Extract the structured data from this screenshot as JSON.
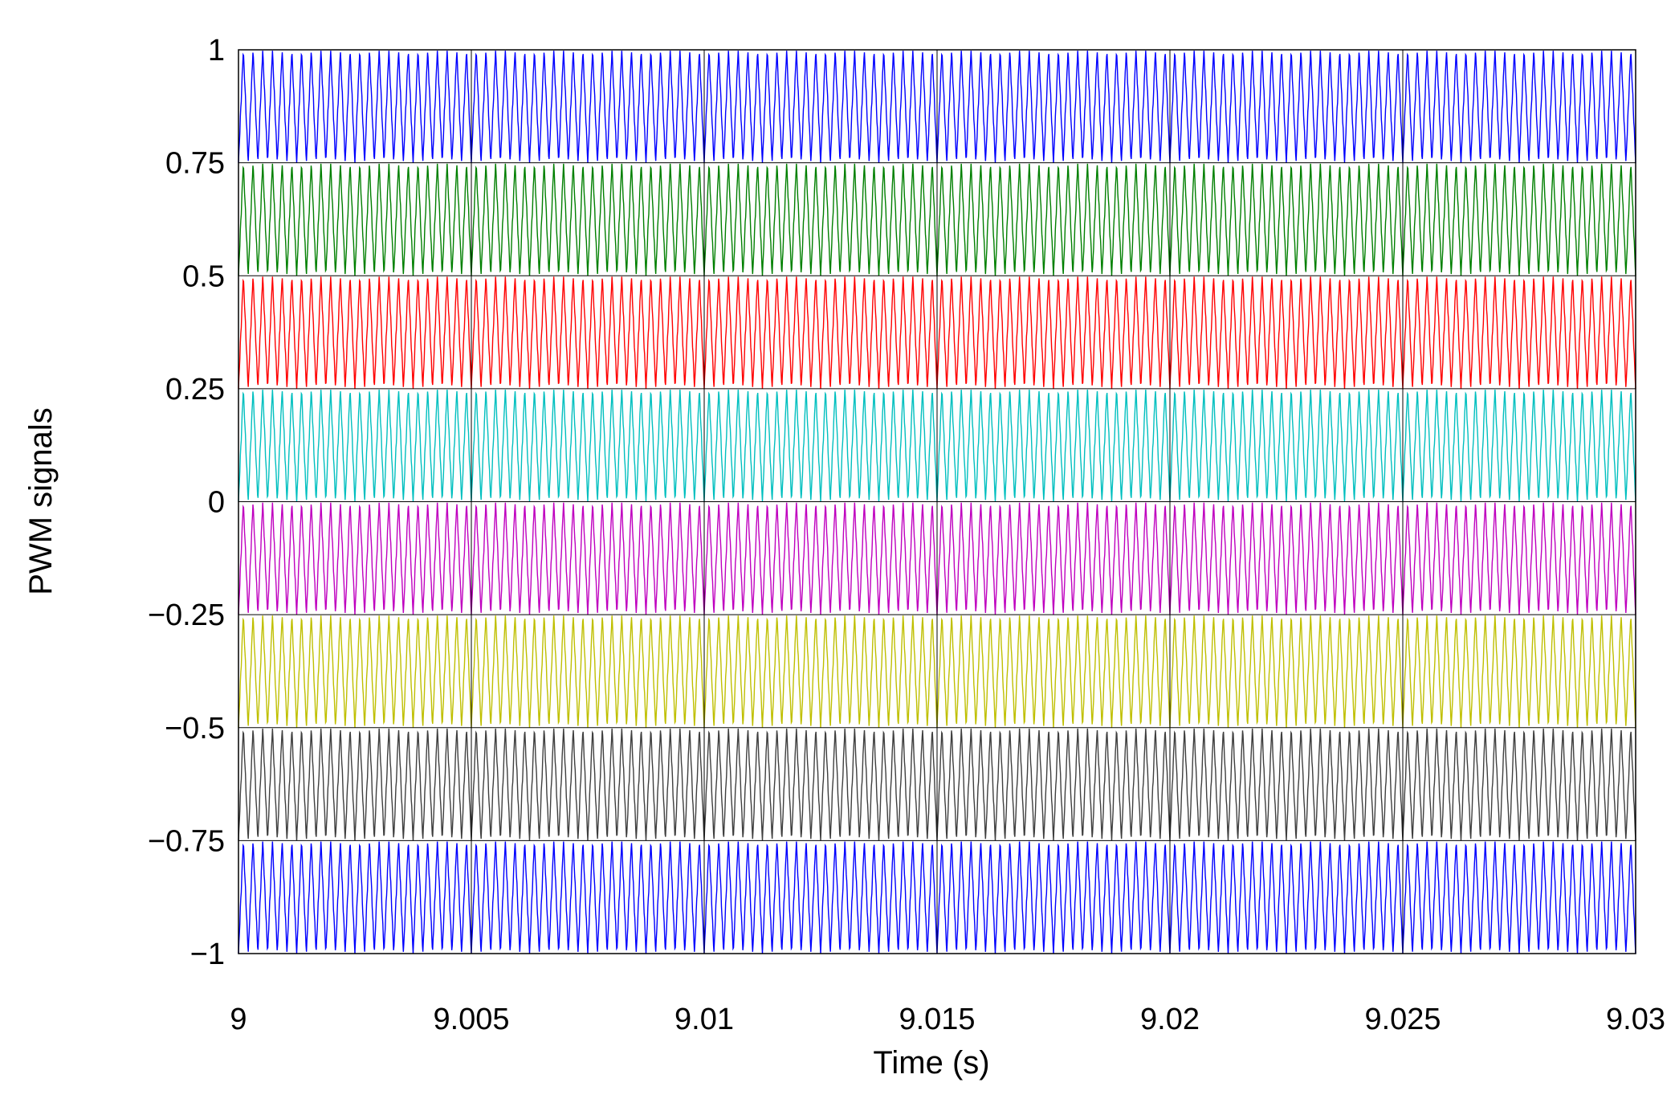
{
  "chart_data": {
    "type": "line",
    "title": "",
    "xlabel": "Time (s)",
    "ylabel": "PWM signals",
    "xlim": [
      9,
      9.03
    ],
    "ylim": [
      -1,
      1
    ],
    "grid": true,
    "legend": "none",
    "x_ticks": [
      "9",
      "9.005",
      "9.01",
      "9.015",
      "9.02",
      "9.025",
      "9.03"
    ],
    "y_ticks": [
      "1",
      "0.75",
      "0.5",
      "0.25",
      "0",
      "−0.25",
      "−0.5",
      "−0.75",
      "−1"
    ],
    "waveform": "triangle carrier",
    "carrier_frequency_hz": 4800,
    "series": [
      {
        "band": [
          0.75,
          1
        ],
        "color": "#0000ff"
      },
      {
        "band": [
          0.5,
          0.75
        ],
        "color": "#007f00"
      },
      {
        "band": [
          0.25,
          0.5
        ],
        "color": "#ff0000"
      },
      {
        "band": [
          0,
          0.25
        ],
        "color": "#00bfbf"
      },
      {
        "band": [
          -0.25,
          0
        ],
        "color": "#bf00bf"
      },
      {
        "band": [
          -0.5,
          -0.25
        ],
        "color": "#bfbf00"
      },
      {
        "band": [
          -0.75,
          -0.5
        ],
        "color": "#3f3f3f"
      },
      {
        "band": [
          -1,
          -0.75
        ],
        "color": "#0000ff"
      }
    ]
  }
}
